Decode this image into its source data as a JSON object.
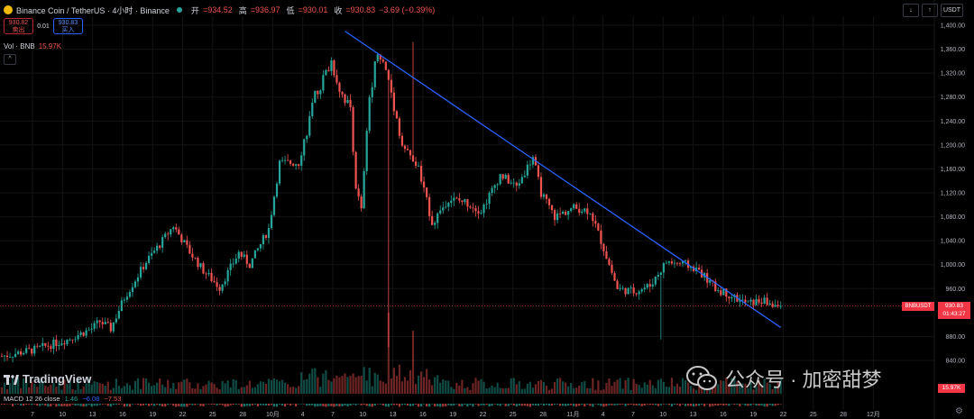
{
  "header": {
    "title": "Binance Coin / TetherUS · 4小时 · Binance",
    "open_label": "开",
    "open": "=934.52",
    "high_label": "高",
    "high": "=936.97",
    "low_label": "低",
    "low": "=930.01",
    "close_label": "收",
    "close": "=930.83",
    "change": "−3.69 (−0.39%)"
  },
  "trade": {
    "sell_price": "930.82",
    "sell_label": "卖出",
    "spread": "0.01",
    "buy_price": "930.83",
    "buy_label": "买入"
  },
  "volume": {
    "label": "Vol · BNB",
    "value": "15.97K"
  },
  "toolbar": {
    "arrow1": "↓",
    "arrow2": "↑",
    "currency": "USDT"
  },
  "price_axis": {
    "labels": [
      "1,400.00",
      "1,360.00",
      "1,320.00",
      "1,280.00",
      "1,240.00",
      "1,200.00",
      "1,160.00",
      "1,120.00",
      "1,080.00",
      "1,040.00",
      "1,000.00",
      "960.00",
      "880.00",
      "840.00"
    ]
  },
  "time_axis": {
    "labels": [
      "7",
      "10",
      "13",
      "16",
      "19",
      "22",
      "25",
      "28",
      "10月",
      "4",
      "7",
      "10",
      "13",
      "16",
      "19",
      "22",
      "25",
      "28",
      "11月",
      "4",
      "7",
      "10",
      "13",
      "16",
      "19",
      "22",
      "25",
      "28",
      "12月"
    ]
  },
  "current": {
    "ticker": "BNBUSDT",
    "price": "930.83",
    "countdown": "01:43:27",
    "volume": "15.97K"
  },
  "macd": {
    "label": "MACD 12 26 close",
    "v1": "1.46",
    "v2": "−6.08",
    "v3": "−7.53"
  },
  "brand": {
    "name": "TradingView"
  },
  "watermark": {
    "text": "公众号 · 加密甜梦"
  },
  "colors": {
    "up": "#26a69a",
    "down": "#ef5350",
    "trend": "#2962ff",
    "background": "#000000"
  },
  "chart_data": {
    "type": "candlestick",
    "symbol": "BNBUSDT",
    "interval": "4h",
    "ylim": [
      840,
      1400
    ],
    "x_ticks": [
      "7",
      "10",
      "13",
      "16",
      "19",
      "22",
      "25",
      "28",
      "10月",
      "4",
      "7",
      "10",
      "13",
      "16",
      "19",
      "22",
      "25",
      "28",
      "11月",
      "4",
      "7",
      "10",
      "13",
      "16",
      "19",
      "22",
      "25",
      "28",
      "12月"
    ],
    "close_path": [
      [
        0,
        847
      ],
      [
        12,
        858
      ],
      [
        24,
        875
      ],
      [
        33,
        893
      ],
      [
        36,
        905
      ],
      [
        40,
        893
      ],
      [
        45,
        945
      ],
      [
        53,
        1005
      ],
      [
        59,
        1040
      ],
      [
        63,
        1065
      ],
      [
        69,
        1021
      ],
      [
        74,
        990
      ],
      [
        80,
        962
      ],
      [
        87,
        1020
      ],
      [
        91,
        1000
      ],
      [
        98,
        1060
      ],
      [
        102,
        1170
      ],
      [
        109,
        1170
      ],
      [
        115,
        1280
      ],
      [
        121,
        1340
      ],
      [
        124,
        1295
      ],
      [
        128,
        1260
      ],
      [
        130,
        1130
      ],
      [
        132,
        1090
      ],
      [
        135,
        1280
      ],
      [
        138,
        1360
      ],
      [
        142,
        1310
      ],
      [
        147,
        1200
      ],
      [
        153,
        1160
      ],
      [
        158,
        1070
      ],
      [
        164,
        1110
      ],
      [
        170,
        1105
      ],
      [
        176,
        1090
      ],
      [
        183,
        1150
      ],
      [
        189,
        1130
      ],
      [
        195,
        1180
      ],
      [
        198,
        1120
      ],
      [
        203,
        1080
      ],
      [
        210,
        1095
      ],
      [
        216,
        1090
      ],
      [
        220,
        1040
      ],
      [
        226,
        960
      ],
      [
        232,
        955
      ],
      [
        238,
        965
      ],
      [
        244,
        1005
      ],
      [
        251,
        1000
      ],
      [
        256,
        990
      ],
      [
        262,
        960
      ],
      [
        267,
        950
      ],
      [
        271,
        940
      ],
      [
        274,
        935
      ],
      [
        279,
        940
      ],
      [
        284,
        931
      ]
    ],
    "trend_line": {
      "from": [
        126,
        1390
      ],
      "to": [
        286,
        895
      ]
    },
    "last_price": 930.83
  }
}
